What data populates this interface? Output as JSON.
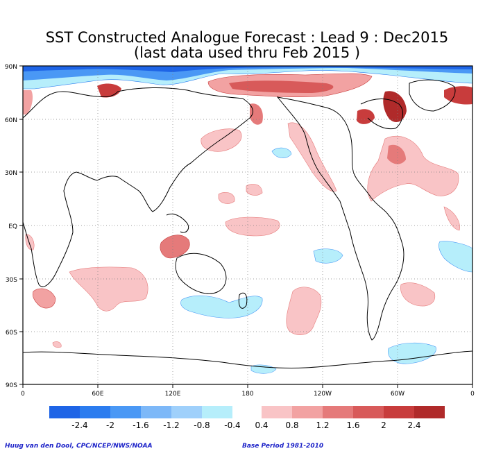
{
  "title": {
    "line1": "SST Constructed Analogue Forecast : Lead 9 : Dec2015",
    "line2": "(last data used thru Feb 2015 )"
  },
  "map": {
    "projection": "equirectangular",
    "lon_ticks": [
      "0",
      "60E",
      "120E",
      "180",
      "120W",
      "60W",
      "0"
    ],
    "lat_ticks": [
      "90N",
      "60N",
      "30N",
      "EQ",
      "30S",
      "60S",
      "90S"
    ],
    "gridlines": "dotted",
    "variable": "SST anomaly forecast"
  },
  "legend": {
    "negative_labels": [
      "-2.4",
      "-2",
      "-1.6",
      "-1.2",
      "-0.8",
      "-0.4"
    ],
    "positive_labels": [
      "0.4",
      "0.8",
      "1.2",
      "1.6",
      "2",
      "2.4"
    ],
    "negative_colors": [
      "#1e64e6",
      "#2b7cef",
      "#4a98f5",
      "#7db8f8",
      "#9fd0fb",
      "#b6eefb"
    ],
    "positive_colors": [
      "#f9c4c6",
      "#f2a2a2",
      "#e57a7a",
      "#d85a5a",
      "#c83c3c",
      "#b02a2a"
    ]
  },
  "credits": {
    "left": "Huug van den Dool, CPC/NCEP/NWS/NOAA",
    "right": "Base Period 1981-2010"
  }
}
